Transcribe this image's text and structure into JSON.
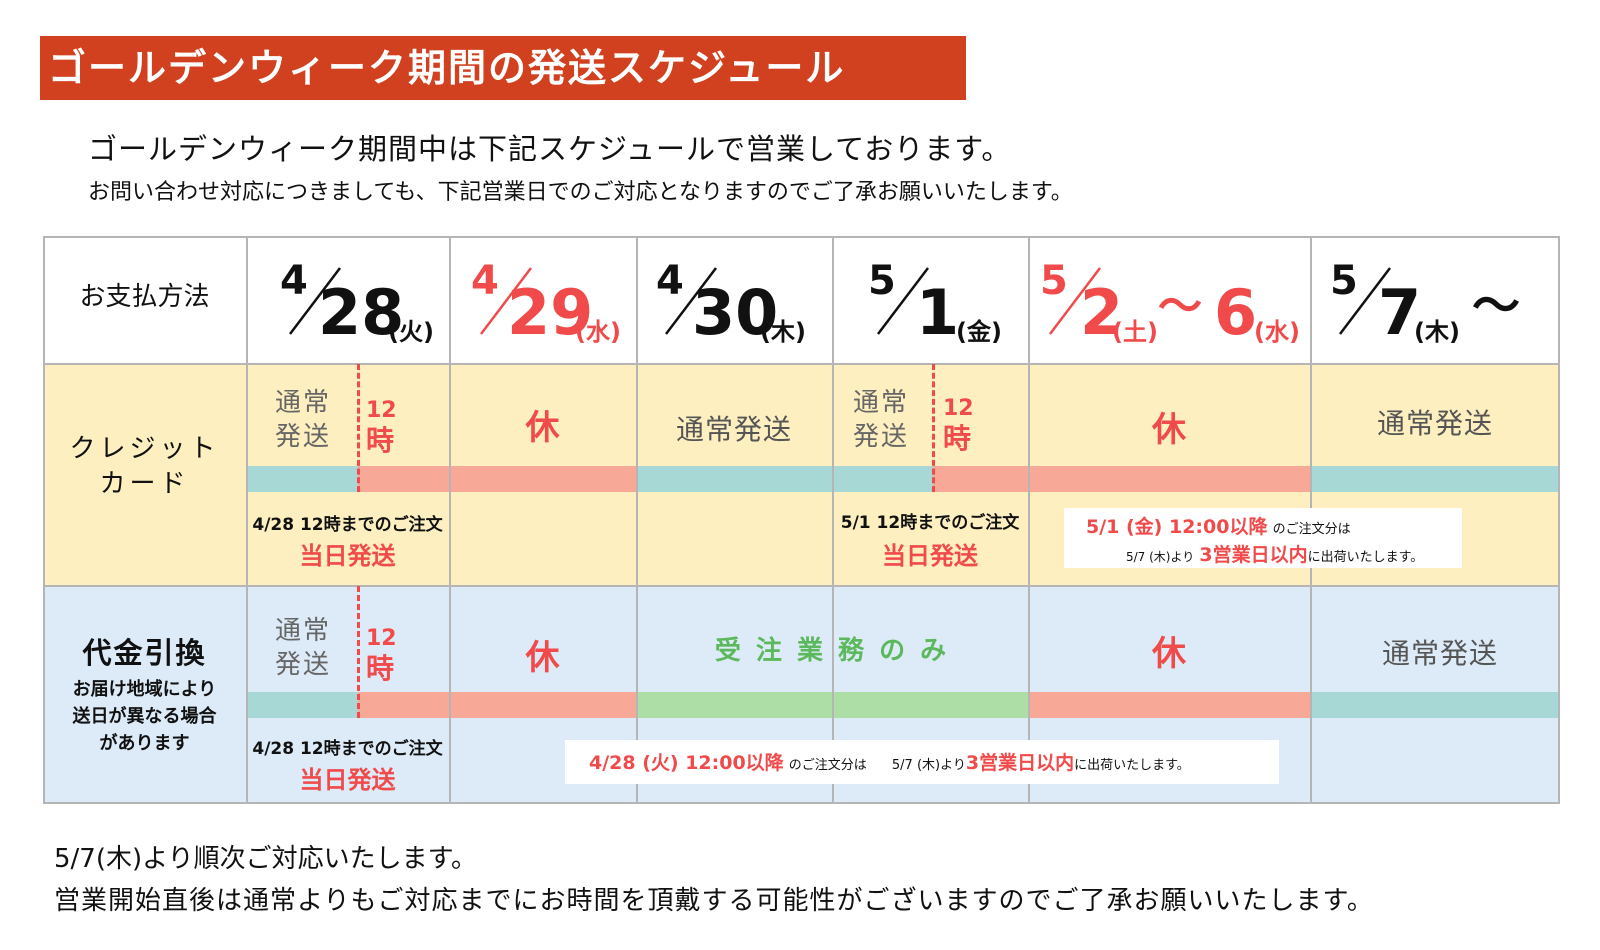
{
  "title": "ゴールデンウィーク期間の発送スケジュール",
  "intro": {
    "line1": "ゴールデンウィーク期間中は下記スケジュールで営業しております。",
    "line2": "お問い合わせ対応につきましても、下記営業日でのご対応となりますのでご了承お願いいたします。"
  },
  "table": {
    "header_label": "お支払方法",
    "dates": [
      {
        "month": "4",
        "day": "28",
        "weekday": "(火)"
      },
      {
        "month": "4",
        "day": "29",
        "weekday": "(水)"
      },
      {
        "month": "4",
        "day": "30",
        "weekday": "(木)"
      },
      {
        "month": "5",
        "day": "1",
        "weekday": "(金)"
      },
      {
        "month": "5",
        "day": "2",
        "weekday": "(土)",
        "tilde": "～",
        "end_day": "6",
        "end_weekday": "(水)"
      },
      {
        "month": "5",
        "day": "7",
        "weekday": "(木)",
        "tilde": "～"
      }
    ],
    "credit": {
      "label_line1": "クレジット",
      "label_line2": "カード",
      "normal_short_line1": "通常",
      "normal_short_line2": "発送",
      "noon_line1": "12",
      "noon_line2": "時",
      "closed": "休",
      "normal": "通常発送",
      "cutoff_428": "4/28 12時までのご注文",
      "cutoff_51": "5/1 12時までのご注文",
      "same_day": "当日発送",
      "note": {
        "part1": "5/1 (金) 12:00以降",
        "part2": "のご注文分は",
        "part3": "5/7 (木)より",
        "part4": "3営業日以内",
        "part5": "に出荷いたします。"
      }
    },
    "cod": {
      "label": "代金引換",
      "sub_line1": "お届け地域により",
      "sub_line2": "送日が異なる場合",
      "sub_line3": "があります",
      "normal_short_line1": "通常",
      "normal_short_line2": "発送",
      "noon_line1": "12",
      "noon_line2": "時",
      "closed": "休",
      "orders_only": "受 注 業 務 の み",
      "normal": "通常発送",
      "cutoff_428": "4/28 12時までのご注文",
      "same_day": "当日発送",
      "note": {
        "part1": "4/28 (火) 12:00以降",
        "part2": "のご注文分は",
        "part3": "5/7 (木)より",
        "part4": "3営業日以内",
        "part5": "に出荷いたします。"
      }
    }
  },
  "footer": {
    "line1": "5/7(木)より順次ご対応いたします。",
    "line2": "営業開始直後は通常よりもご対応までにお時間を頂戴する可能性がございますのでご了承お願いいたします。"
  },
  "colors": {
    "title_bg": "#d1401f",
    "accent_red": "#f04a4a",
    "credit_bg": "#fdefc0",
    "cod_bg": "#ddebf8",
    "band_teal": "#a7d8d5",
    "band_salmon": "#f7a897",
    "band_green": "#acdea5",
    "orders_only_text": "#5cb85c"
  }
}
